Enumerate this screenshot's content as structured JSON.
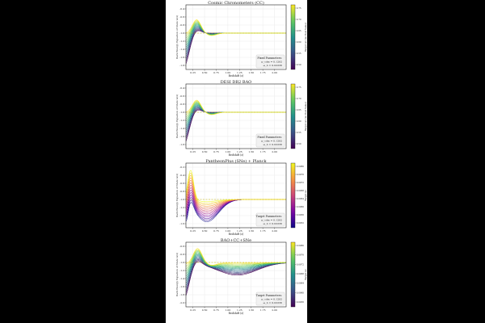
{
  "chart_data": [
    {
      "type": "line",
      "title": "Cosmic Chronometers (CC)",
      "xlabel": "Redshift (z)",
      "ylabel": "Dark Energy Equation of State w(z)",
      "colorbar_label": "Target w₀ (w₀ Best Value)",
      "colormap": "viridis",
      "xticks": [
        "0.25",
        "0.50",
        "0.75",
        "1.00",
        "1.25",
        "1.50",
        "1.75",
        "2.00"
      ],
      "yticks": [
        "-0.4",
        "-0.6",
        "-0.8",
        "-1.0",
        "-1.2",
        "-1.4",
        "-1.6",
        "-1.8"
      ],
      "cticks": [
        "0.75",
        "0.70",
        "0.65",
        "0.60",
        "0.55",
        "0.50"
      ],
      "xlim": [
        0.1,
        2.25
      ],
      "ylim": [
        -1.9,
        -0.3
      ],
      "reference_line": -1.0,
      "families": {
        "count": 14,
        "baseline": -1.0,
        "min_depth": 0.02,
        "max_depth": 0.85,
        "trough_z": 0.13,
        "peak_z": 0.33,
        "peak_height": 0.33,
        "flat_after_z": 1.0
      },
      "textbox": {
        "heading": "Fixed Parameters:",
        "line1": "ω_cdm = 0.1202",
        "line2": "ω_b = 0.02236"
      }
    },
    {
      "type": "line",
      "title": "DESI DR2 BAO",
      "xlabel": "Redshift (z)",
      "ylabel": "Dark Energy Equation of State w(z)",
      "colorbar_label": "Target w₀ (w₀ Best Value)",
      "colormap": "viridis",
      "xticks": [
        "0.25",
        "0.50",
        "0.75",
        "1.00",
        "1.25",
        "1.50",
        "1.75",
        "2.00"
      ],
      "yticks": [
        "-0.4",
        "-0.6",
        "-0.8",
        "-1.0",
        "-1.2",
        "-1.4",
        "-1.6",
        "-1.8"
      ],
      "cticks": [
        "0.75",
        "0.70",
        "0.65",
        "0.60",
        "0.55",
        "0.50"
      ],
      "xlim": [
        0.1,
        2.25
      ],
      "ylim": [
        -1.9,
        -0.3
      ],
      "reference_line": -1.0,
      "families": {
        "count": 14,
        "baseline": -1.0,
        "min_depth": 0.02,
        "max_depth": 0.8,
        "trough_z": 0.13,
        "peak_z": 0.33,
        "peak_height": 0.3,
        "flat_after_z": 1.1
      },
      "textbox": {
        "heading": "Fixed Parameters:",
        "line1": "ω_cdm = 0.1202",
        "line2": "ω_b = 0.02236"
      }
    },
    {
      "type": "line",
      "title": "PantheonPlus (SNe) + Planck",
      "xlabel": "Redshift (z)",
      "ylabel": "Dark Energy Equation of State w(z)",
      "colorbar_label": "Target w₀",
      "colormap": "plasma",
      "xticks": [
        "0.25",
        "0.50",
        "0.75",
        "1.00",
        "1.25",
        "1.50",
        "1.75",
        "2.00"
      ],
      "yticks": [
        "-0.2",
        "-0.4",
        "-0.6",
        "-0.8",
        "-1.0",
        "-1.2",
        "-1.4",
        "-1.6"
      ],
      "cticks": [
        "0.0980",
        "0.0976",
        "0.0972",
        "0.0968",
        "0.0964",
        "0.0960",
        "0.0956",
        "0.0952"
      ],
      "xlim": [
        0.1,
        2.25
      ],
      "ylim": [
        -1.7,
        -0.1
      ],
      "reference_line": -1.0,
      "families": {
        "count": 14,
        "baseline": -1.0,
        "min_depth": 0.05,
        "max_depth": 0.55,
        "trough_z": 0.55,
        "peak_z": 0.2,
        "peak_height": 0.75,
        "flat_after_z": 2.2
      },
      "textbox": {
        "heading": "Target Parameters:",
        "line1": "ω_cdm = 0.1202",
        "line2": "ω_b = 0.02236"
      }
    },
    {
      "type": "line",
      "title": "BAO+CC+SNe",
      "xlabel": "Redshift (z)",
      "ylabel": "Dark Energy Equation of State w(z)",
      "colorbar_label": "Target w₀",
      "colormap": "viridis",
      "xticks": [
        "0.25",
        "0.50",
        "0.75",
        "1.00",
        "1.25",
        "1.50",
        "1.75",
        "2.00"
      ],
      "yticks": [
        "-0.6",
        "-0.8",
        "-1.0",
        "-1.2",
        "-1.4",
        "-1.6",
        "-1.8",
        "-2.0"
      ],
      "cticks": [
        "0.0980",
        "0.0976",
        "0.0972",
        "0.0968",
        "0.0964",
        "0.0960",
        "0.0956"
      ],
      "xlim": [
        0.1,
        2.25
      ],
      "ylim": [
        -2.1,
        -0.5
      ],
      "reference_line": -1.0,
      "families": {
        "count": 14,
        "baseline": -1.0,
        "min_depth": 0.05,
        "max_depth": 0.9,
        "trough_z": 0.13,
        "peak_z": 0.35,
        "peak_height": 0.35,
        "flat_after_z": 2.2
      },
      "textbox": {
        "heading": "Target Parameters:",
        "line1": "ω_cdm = 0.1202",
        "line2": "ω_b = 0.02236"
      }
    }
  ]
}
